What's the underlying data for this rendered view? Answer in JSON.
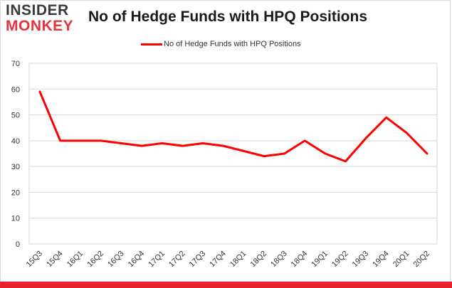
{
  "logo": {
    "line1": "INSIDER",
    "line2": "MONKEY"
  },
  "colors": {
    "series": "#ff0000",
    "logo_red": "#e5323b",
    "bottom_bar": "#e8222f",
    "grid": "#d9d9d9"
  },
  "chart_data": {
    "type": "line",
    "title": "No of Hedge Funds with HPQ Positions",
    "xlabel": "",
    "ylabel": "",
    "ylim": [
      0,
      70
    ],
    "yticks": [
      0,
      10,
      20,
      30,
      40,
      50,
      60,
      70
    ],
    "grid": true,
    "legend_position": "top-center",
    "categories": [
      "15Q3",
      "15Q4",
      "16Q1",
      "16Q2",
      "16Q3",
      "16Q4",
      "17Q1",
      "17Q2",
      "17Q3",
      "17Q4",
      "18Q1",
      "18Q2",
      "18Q3",
      "18Q4",
      "19Q1",
      "19Q2",
      "19Q3",
      "19Q4",
      "20Q1",
      "20Q2"
    ],
    "series": [
      {
        "name": "No of Hedge Funds with HPQ Positions",
        "values": [
          59,
          40,
          40,
          40,
          39,
          38,
          39,
          38,
          39,
          38,
          36,
          34,
          35,
          40,
          35,
          32,
          41,
          49,
          43,
          35
        ]
      }
    ]
  }
}
